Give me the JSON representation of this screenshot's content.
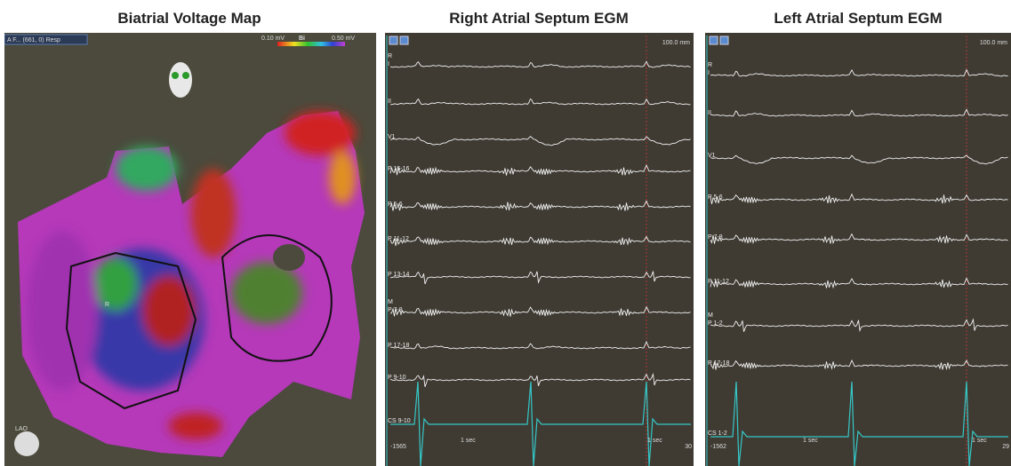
{
  "left": {
    "title": "Biatrial Voltage Map",
    "selector": "A F... (661, 0) Resp",
    "scale_min": "0.10 mV",
    "scale_mode": "Bi",
    "scale_max": "0.50 mV",
    "view": "LAO",
    "marker": "R"
  },
  "middle": {
    "title": "Right Atrial Septum EGM",
    "speed": "100.0 mm",
    "channels": [
      {
        "label": "I",
        "group": "R"
      },
      {
        "label": "II"
      },
      {
        "label": "V1"
      },
      {
        "label": "P 15-16"
      },
      {
        "label": "P 5-6"
      },
      {
        "label": "P 11-12"
      },
      {
        "label": "P 13-14"
      },
      {
        "label": "P 7-8",
        "group": "M"
      },
      {
        "label": "P 17-18"
      },
      {
        "label": "P 9-10"
      }
    ],
    "cs_label": "CS 9-10",
    "left_value": "-1565",
    "time_labels": [
      "1 sec",
      "1 sec"
    ],
    "right_value": "30"
  },
  "right": {
    "title": "Left Atrial Septum EGM",
    "speed": "100.0 mm",
    "channels": [
      {
        "label": "I",
        "group": "R"
      },
      {
        "label": "II"
      },
      {
        "label": "V1"
      },
      {
        "label": "P 5-6"
      },
      {
        "label": "P 7-8"
      },
      {
        "label": "P 11-12"
      },
      {
        "label": "P 1-2",
        "group": "M"
      },
      {
        "label": "P 17-18"
      }
    ],
    "cs_label": "CS 1-2",
    "left_value": "-1562",
    "time_labels": [
      "1 sec",
      "1 sec"
    ],
    "right_value": "29"
  }
}
